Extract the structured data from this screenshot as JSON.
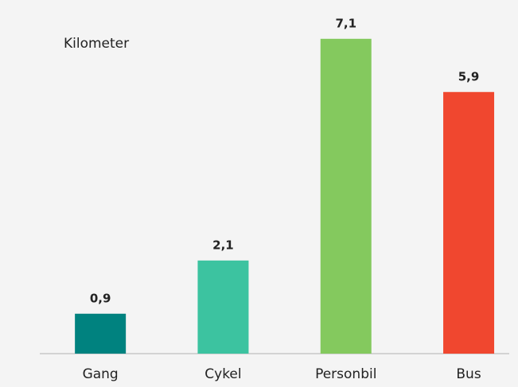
{
  "chart_data": {
    "type": "bar",
    "y_label": "Kilometer",
    "categories": [
      "Gang",
      "Cykel",
      "Personbil",
      "Bus"
    ],
    "values": [
      0.9,
      2.1,
      7.1,
      5.9
    ],
    "value_labels": [
      "0,9",
      "2,1",
      "7,1",
      "5,9"
    ],
    "colors": [
      "#00827f",
      "#3cc3a0",
      "#84c95e",
      "#f0472f"
    ],
    "ylim": [
      0,
      7.5
    ],
    "grid": false
  }
}
